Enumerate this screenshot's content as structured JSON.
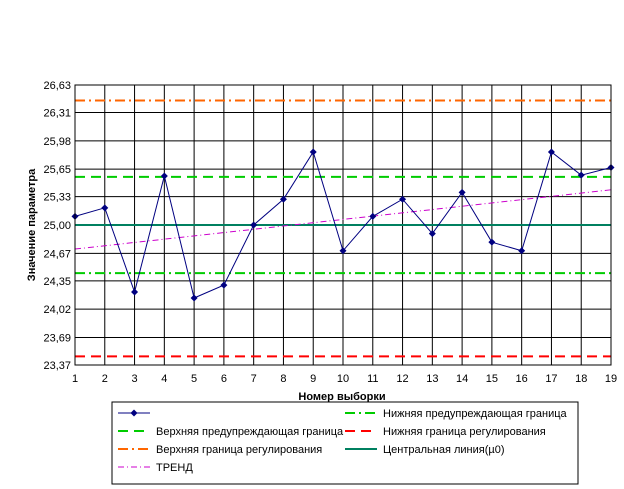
{
  "chart_data": {
    "type": "line",
    "title": "",
    "xlabel": "Номер выборки",
    "ylabel": "Значение параметра",
    "x": [
      1,
      2,
      3,
      4,
      5,
      6,
      7,
      8,
      9,
      10,
      11,
      12,
      13,
      14,
      15,
      16,
      17,
      18,
      19
    ],
    "x_ticks": [
      "1",
      "2",
      "3",
      "4",
      "5",
      "6",
      "7",
      "8",
      "9",
      "10",
      "11",
      "12",
      "13",
      "14",
      "15",
      "16",
      "17",
      "18",
      "19"
    ],
    "ylim": [
      23.37,
      26.63
    ],
    "y_ticks": [
      23.37,
      23.69,
      24.02,
      24.35,
      24.67,
      25.0,
      25.33,
      25.65,
      25.98,
      26.31,
      26.63
    ],
    "y_tick_labels": [
      "23,37",
      "23,69",
      "24,02",
      "24,35",
      "24,67",
      "25,00",
      "25,33",
      "25,65",
      "25,98",
      "26,31",
      "26,63"
    ],
    "grid": true,
    "legend_position": "bottom",
    "series": [
      {
        "name": "",
        "kind": "data",
        "color": "#000080",
        "values": [
          25.1,
          25.2,
          24.22,
          25.57,
          24.15,
          24.3,
          25.0,
          25.3,
          25.85,
          24.7,
          25.1,
          25.3,
          24.9,
          25.38,
          24.8,
          24.7,
          25.85,
          25.58,
          25.67
        ]
      },
      {
        "name": "Нижняя предупреждающая граница",
        "kind": "hline",
        "value": 24.44,
        "color": "#00cc00",
        "dash": "dashdot"
      },
      {
        "name": "Верхняя предупреждающая граница",
        "kind": "hline",
        "value": 25.56,
        "color": "#00cc00",
        "dash": "dash"
      },
      {
        "name": "Нижняя граница регулирования",
        "kind": "hline",
        "value": 23.47,
        "color": "#ff0000",
        "dash": "dash"
      },
      {
        "name": "Верхняя граница регулирования",
        "kind": "hline",
        "value": 26.45,
        "color": "#ff6600",
        "dash": "dashdot"
      },
      {
        "name": "Центральная линия(µ0)",
        "kind": "hline",
        "value": 25.0,
        "color": "#008060",
        "dash": "solid"
      },
      {
        "name": "ТРЕНД",
        "kind": "trend",
        "start": 24.72,
        "end": 25.41,
        "color": "#cc00cc",
        "dash": "dashdot"
      }
    ]
  }
}
